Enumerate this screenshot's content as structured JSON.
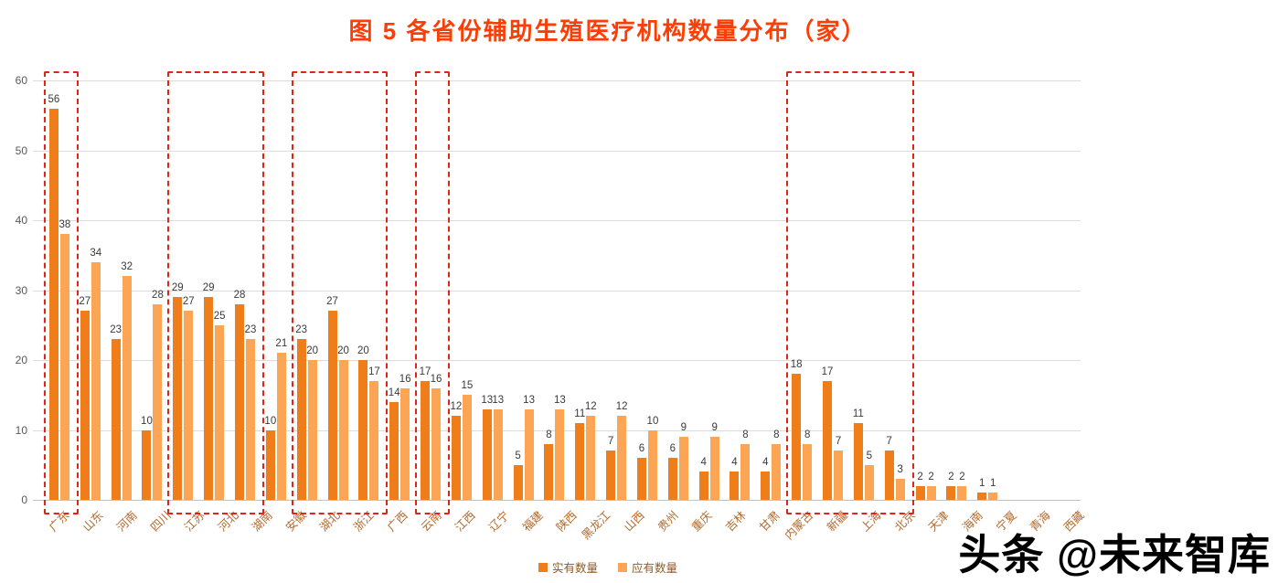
{
  "title": "图 5 各省份辅助生殖医疗机构数量分布（家）",
  "watermark": "头条 @未来智库",
  "colors": {
    "title": "#fb3e05",
    "highlight_box": "#e02416",
    "series_actual": "#ef7d1a",
    "series_expected": "#fba555"
  },
  "chart_data": {
    "type": "bar",
    "title": "图 5 各省份辅助生殖医疗机构数量分布（家）",
    "xlabel": "",
    "ylabel": "",
    "ylim": [
      0,
      60
    ],
    "yticks": [
      0,
      10,
      20,
      30,
      40,
      50,
      60
    ],
    "grid": true,
    "legend_position": "bottom",
    "categories": [
      "广东",
      "山东",
      "河南",
      "四川",
      "江苏",
      "河北",
      "湖南",
      "安徽",
      "湖北",
      "浙江",
      "广西",
      "云南",
      "江西",
      "辽宁",
      "福建",
      "陕西",
      "黑龙江",
      "山西",
      "贵州",
      "重庆",
      "吉林",
      "甘肃",
      "内蒙古",
      "新疆",
      "上海",
      "北京",
      "天津",
      "海南",
      "宁夏",
      "青海",
      "西藏"
    ],
    "series": [
      {
        "name": "实有数量",
        "color": "#ef7d1a",
        "values": [
          56,
          27,
          23,
          10,
          29,
          29,
          28,
          10,
          23,
          27,
          20,
          14,
          17,
          12,
          13,
          5,
          8,
          11,
          7,
          6,
          6,
          4,
          4,
          4,
          18,
          17,
          11,
          7,
          2,
          2,
          1
        ]
      },
      {
        "name": "应有数量",
        "color": "#fba555",
        "values": [
          38,
          34,
          32,
          28,
          27,
          25,
          23,
          21,
          20,
          20,
          17,
          16,
          16,
          15,
          13,
          13,
          13,
          12,
          12,
          10,
          9,
          9,
          8,
          8,
          8,
          7,
          5,
          3,
          2,
          2,
          1
        ]
      }
    ],
    "highlighted_groups": [
      [
        0,
        0
      ],
      [
        4,
        6
      ],
      [
        8,
        10
      ],
      [
        12,
        12
      ],
      [
        24,
        27
      ]
    ]
  }
}
